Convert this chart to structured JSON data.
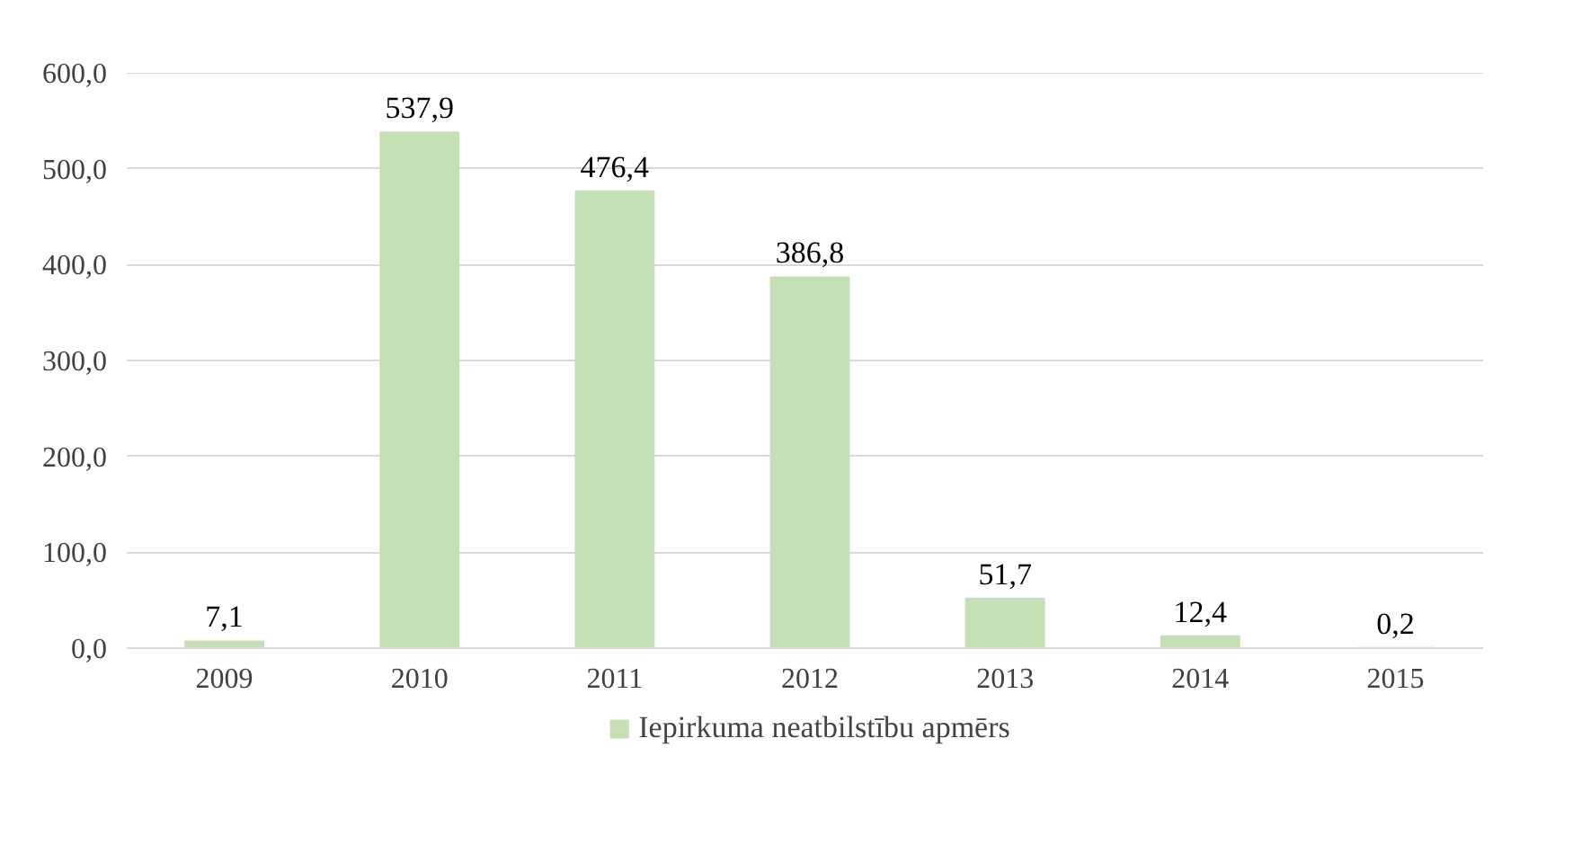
{
  "chart_data": {
    "type": "bar",
    "categories": [
      "2009",
      "2010",
      "2011",
      "2012",
      "2013",
      "2014",
      "2015"
    ],
    "series": [
      {
        "name": "Iepirkuma neatbilstību apmērs",
        "color": "#c5e0b4",
        "values": [
          7.1,
          537.9,
          476.4,
          386.8,
          51.7,
          12.4,
          0.2
        ],
        "value_labels": [
          "7,1",
          "537,9",
          "476,4",
          "386,8",
          "51,7",
          "12,4",
          "0,2"
        ]
      }
    ],
    "ylim": [
      0,
      600
    ],
    "yticks": [
      {
        "value": 0,
        "label": "0,0"
      },
      {
        "value": 100,
        "label": "100,0"
      },
      {
        "value": 200,
        "label": "200,0"
      },
      {
        "value": 300,
        "label": "300,0"
      },
      {
        "value": 400,
        "label": "400,0"
      },
      {
        "value": 500,
        "label": "500,0"
      },
      {
        "value": 600,
        "label": "600,0"
      }
    ],
    "grid": "y",
    "legend": "bottom"
  }
}
